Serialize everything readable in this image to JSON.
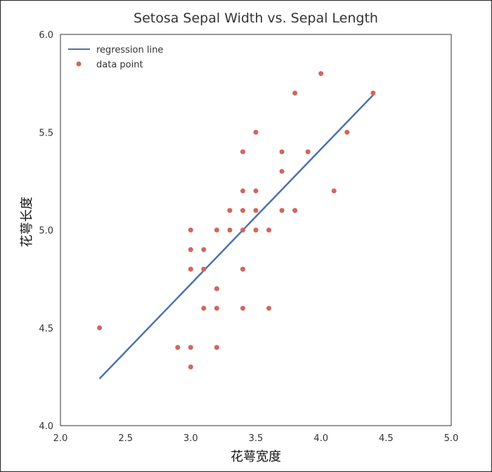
{
  "chart_data": {
    "type": "scatter",
    "title": "Setosa Sepal Width vs. Sepal Length",
    "xlabel": "花萼宽度",
    "ylabel": "花萼长度",
    "xlim": [
      2.0,
      5.0
    ],
    "ylim": [
      4.0,
      6.0
    ],
    "xticks": [
      "2.0",
      "2.5",
      "3.0",
      "3.5",
      "4.0",
      "4.5",
      "5.0"
    ],
    "yticks": [
      "4.0",
      "4.5",
      "5.0",
      "5.5",
      "6.0"
    ],
    "grid": false,
    "legend_position": "top-left",
    "series": [
      {
        "name": "regression line",
        "type": "line",
        "color": "#4c72b0",
        "x": [
          2.3,
          4.4
        ],
        "y": [
          4.24,
          5.69
        ]
      },
      {
        "name": "data point",
        "type": "scatter",
        "color": "#d1665f",
        "x": [
          2.3,
          2.9,
          3.0,
          3.0,
          3.0,
          3.0,
          3.0,
          3.0,
          3.1,
          3.1,
          3.1,
          3.2,
          3.2,
          3.2,
          3.2,
          3.2,
          3.3,
          3.3,
          3.4,
          3.4,
          3.4,
          3.4,
          3.4,
          3.4,
          3.4,
          3.5,
          3.5,
          3.5,
          3.5,
          3.6,
          3.6,
          3.7,
          3.7,
          3.7,
          3.8,
          3.8,
          3.9,
          4.0,
          4.1,
          4.2,
          4.4
        ],
        "y": [
          4.5,
          4.4,
          4.3,
          4.4,
          4.8,
          4.9,
          5.0,
          4.8,
          4.9,
          4.8,
          4.6,
          4.4,
          4.6,
          4.7,
          5.0,
          4.7,
          5.1,
          5.0,
          4.6,
          4.8,
          5.0,
          5.1,
          5.2,
          5.4,
          4.8,
          5.0,
          5.1,
          5.2,
          5.5,
          4.6,
          5.0,
          5.1,
          5.3,
          5.4,
          5.1,
          5.7,
          5.4,
          5.8,
          5.2,
          5.5,
          5.7
        ]
      }
    ]
  }
}
